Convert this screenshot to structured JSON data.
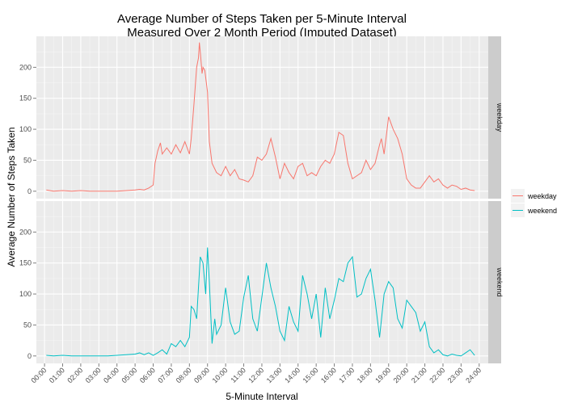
{
  "chart_data": {
    "type": "line",
    "title_lines": [
      "Average Number of Steps Taken per 5-Minute Interval",
      "Measured Over 2 Month Period (Imputed Dataset)"
    ],
    "xlabel": "5-Minute Interval",
    "ylabel": "Average Number of Steps Taken",
    "x_ticks": [
      "00:00",
      "01:00",
      "02:00",
      "03:00",
      "04:00",
      "05:00",
      "06:00",
      "07:00",
      "08:00",
      "09:00",
      "10:00",
      "11:00",
      "12:00",
      "13:00",
      "14:00",
      "15:00",
      "16:00",
      "17:00",
      "18:00",
      "19:00",
      "20:00",
      "21:00",
      "22:00",
      "23:00",
      "24:00"
    ],
    "x_unit": "hours",
    "xlim": [
      -0.45,
      24.5
    ],
    "y_ticks": [
      0,
      50,
      100,
      150,
      200
    ],
    "ylim": [
      -12,
      250
    ],
    "grid": true,
    "legend_position": "right",
    "facets": [
      "weekday",
      "weekend"
    ],
    "series": [
      {
        "name": "weekday",
        "color": "#F8766D",
        "x": [
          0.1,
          0.5,
          1.0,
          1.5,
          2.0,
          2.5,
          3.0,
          3.5,
          4.0,
          4.5,
          5.0,
          5.25,
          5.5,
          5.75,
          6.0,
          6.1,
          6.25,
          6.4,
          6.5,
          6.75,
          7.0,
          7.25,
          7.5,
          7.75,
          8.0,
          8.1,
          8.25,
          8.4,
          8.5,
          8.55,
          8.6,
          8.7,
          8.75,
          8.85,
          9.0,
          9.1,
          9.25,
          9.5,
          9.75,
          10.0,
          10.25,
          10.5,
          10.75,
          11.0,
          11.25,
          11.5,
          11.75,
          12.0,
          12.25,
          12.5,
          12.75,
          13.0,
          13.25,
          13.5,
          13.75,
          14.0,
          14.25,
          14.5,
          14.75,
          15.0,
          15.25,
          15.5,
          15.75,
          16.0,
          16.25,
          16.5,
          16.75,
          17.0,
          17.25,
          17.5,
          17.75,
          18.0,
          18.25,
          18.5,
          18.6,
          18.75,
          19.0,
          19.25,
          19.5,
          19.75,
          20.0,
          20.25,
          20.5,
          20.75,
          21.0,
          21.25,
          21.5,
          21.75,
          22.0,
          22.25,
          22.5,
          22.75,
          23.0,
          23.25,
          23.5,
          23.75
        ],
        "values": [
          2,
          0,
          1,
          0,
          1,
          0,
          0,
          0,
          0,
          1,
          2,
          3,
          2,
          5,
          10,
          45,
          65,
          78,
          60,
          70,
          60,
          75,
          62,
          80,
          60,
          85,
          140,
          200,
          215,
          240,
          225,
          190,
          200,
          195,
          160,
          80,
          45,
          30,
          25,
          40,
          25,
          35,
          20,
          18,
          15,
          25,
          55,
          50,
          60,
          85,
          55,
          20,
          45,
          30,
          20,
          40,
          45,
          25,
          30,
          25,
          40,
          50,
          45,
          60,
          95,
          90,
          45,
          20,
          25,
          30,
          50,
          35,
          45,
          75,
          85,
          60,
          120,
          100,
          85,
          60,
          20,
          10,
          5,
          5,
          15,
          25,
          15,
          20,
          10,
          5,
          10,
          8,
          3,
          5,
          2,
          1
        ]
      },
      {
        "name": "weekend",
        "color": "#00BFC4",
        "x": [
          0.1,
          0.5,
          1.0,
          1.5,
          2.0,
          2.5,
          3.0,
          3.5,
          4.0,
          4.5,
          5.0,
          5.25,
          5.5,
          5.75,
          6.0,
          6.25,
          6.5,
          6.75,
          7.0,
          7.25,
          7.5,
          7.75,
          8.0,
          8.1,
          8.25,
          8.4,
          8.5,
          8.6,
          8.75,
          8.9,
          9.0,
          9.1,
          9.25,
          9.4,
          9.5,
          9.75,
          10.0,
          10.25,
          10.5,
          10.75,
          11.0,
          11.25,
          11.5,
          11.75,
          12.0,
          12.25,
          12.5,
          12.75,
          13.0,
          13.25,
          13.5,
          13.75,
          14.0,
          14.25,
          14.5,
          14.75,
          15.0,
          15.25,
          15.5,
          15.75,
          16.0,
          16.25,
          16.5,
          16.75,
          17.0,
          17.25,
          17.5,
          17.75,
          18.0,
          18.25,
          18.5,
          18.75,
          19.0,
          19.25,
          19.5,
          19.75,
          20.0,
          20.25,
          20.5,
          20.75,
          21.0,
          21.25,
          21.5,
          21.75,
          22.0,
          22.25,
          22.5,
          22.75,
          23.0,
          23.25,
          23.5,
          23.75
        ],
        "values": [
          1,
          0,
          1,
          0,
          0,
          0,
          0,
          0,
          1,
          2,
          3,
          5,
          2,
          5,
          1,
          5,
          10,
          3,
          20,
          15,
          25,
          15,
          30,
          80,
          75,
          60,
          110,
          160,
          150,
          100,
          175,
          120,
          20,
          60,
          35,
          50,
          110,
          55,
          35,
          40,
          95,
          130,
          60,
          40,
          95,
          150,
          110,
          80,
          40,
          25,
          80,
          55,
          40,
          130,
          100,
          60,
          100,
          30,
          110,
          60,
          90,
          125,
          120,
          150,
          160,
          95,
          100,
          125,
          140,
          90,
          30,
          100,
          120,
          110,
          60,
          45,
          90,
          80,
          70,
          40,
          55,
          15,
          5,
          10,
          2,
          0,
          3,
          1,
          0,
          5,
          10,
          1
        ]
      }
    ]
  }
}
